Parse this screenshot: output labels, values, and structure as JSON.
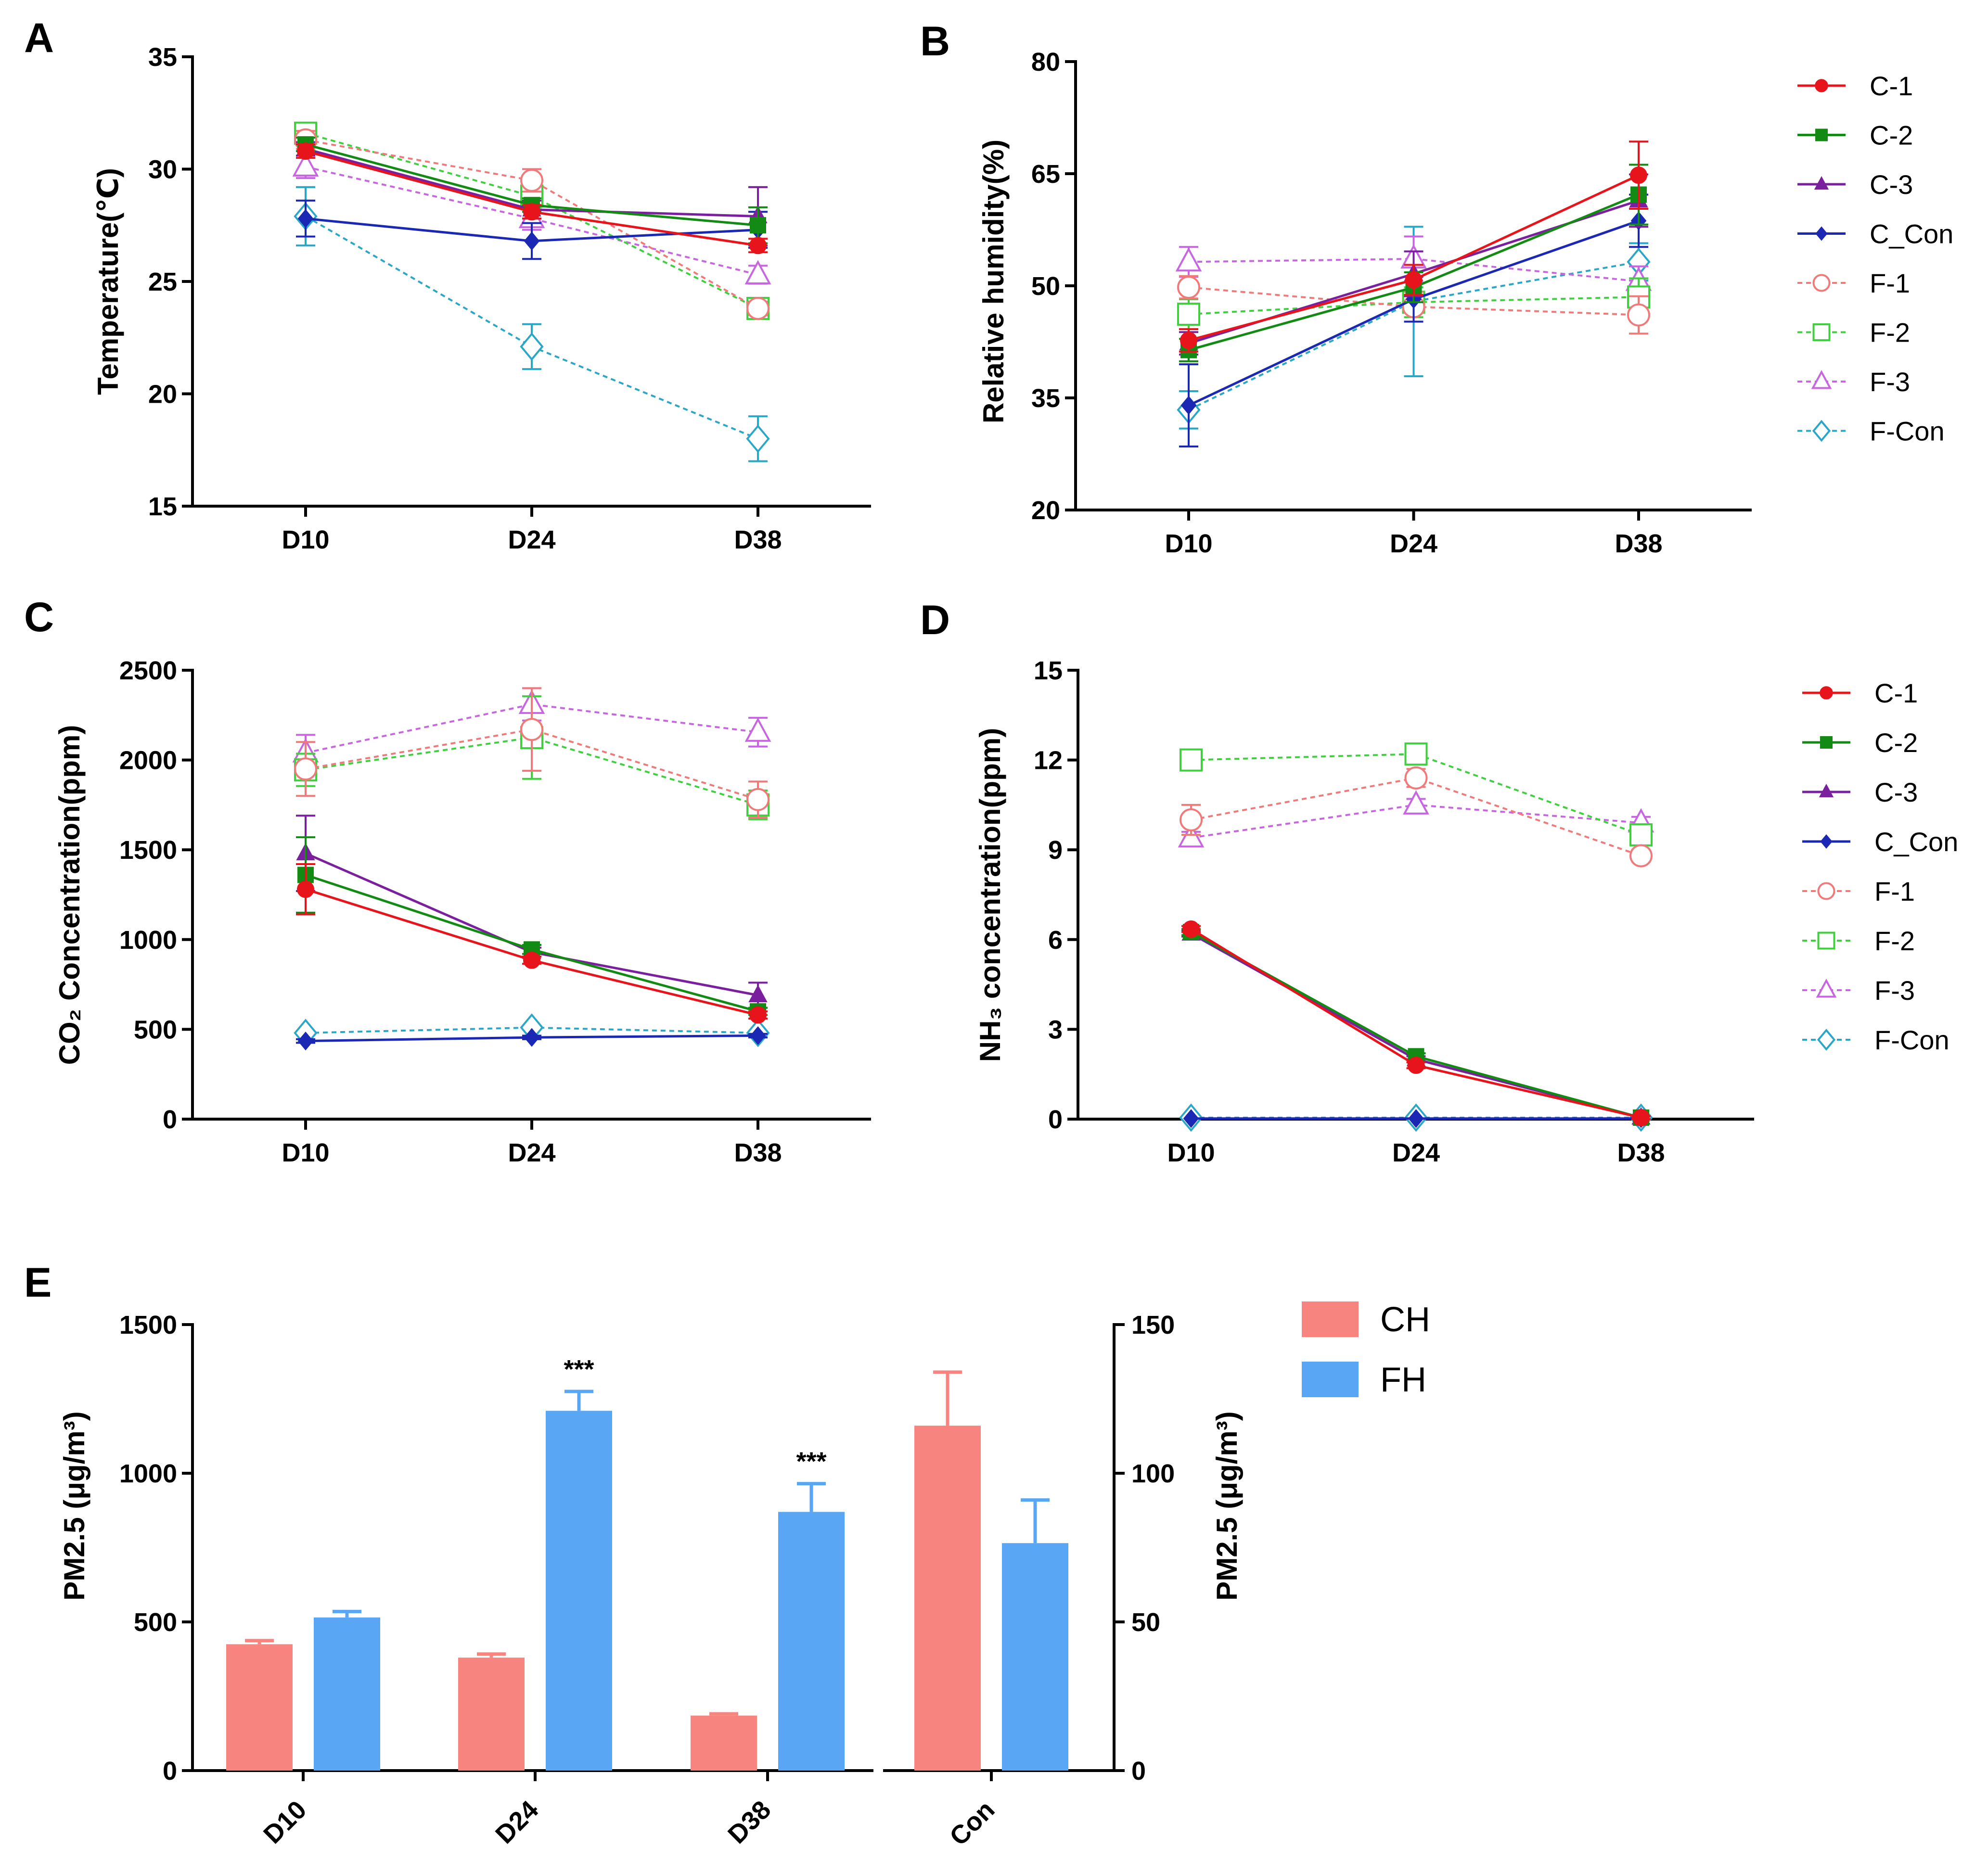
{
  "colors": {
    "C-1": "#e8141c",
    "C-2": "#128a14",
    "C-3": "#7a1f9e",
    "C_Con": "#1a28b4",
    "F-1": "#f07a7a",
    "F-2": "#3fcf3f",
    "F-3": "#c766e0",
    "F-Con": "#2aa6c6",
    "CH": "#f88480",
    "FH": "#58a6f4"
  },
  "chart_data": [
    {
      "id": "A",
      "type": "line",
      "panel_label": "A",
      "ylabel": "Temperature(℃)",
      "xlabel": "",
      "categories": [
        "D10",
        "D24",
        "D38"
      ],
      "ylim": [
        15,
        35
      ],
      "yticks": [
        "15",
        "20",
        "25",
        "30",
        "35"
      ],
      "series": [
        {
          "name": "C-1",
          "values": [
            30.8,
            28.1,
            26.6
          ],
          "err": [
            0.3,
            0.3,
            0.3
          ]
        },
        {
          "name": "C-2",
          "values": [
            31.1,
            28.4,
            27.5
          ],
          "err": [
            0.3,
            0.3,
            0.8
          ]
        },
        {
          "name": "C-3",
          "values": [
            30.9,
            28.2,
            27.9
          ],
          "err": [
            0.3,
            0.4,
            1.3
          ]
        },
        {
          "name": "C_Con",
          "values": [
            27.8,
            26.8,
            27.3
          ],
          "err": [
            0.8,
            0.8,
            0.8
          ]
        },
        {
          "name": "F-1",
          "values": [
            31.3,
            29.5,
            23.8
          ],
          "err": [
            0.4,
            0.5,
            0.3
          ]
        },
        {
          "name": "F-2",
          "values": [
            31.6,
            28.8,
            23.8
          ],
          "err": [
            0.3,
            0.5,
            0.3
          ]
        },
        {
          "name": "F-3",
          "values": [
            30.1,
            27.8,
            25.3
          ],
          "err": [
            0.5,
            0.5,
            0.4
          ]
        },
        {
          "name": "F-Con",
          "values": [
            27.9,
            22.1,
            18.0
          ],
          "err": [
            1.3,
            1.0,
            1.0
          ]
        }
      ]
    },
    {
      "id": "B",
      "type": "line",
      "panel_label": "B",
      "ylabel": "Relative humidity(%)",
      "xlabel": "",
      "categories": [
        "D10",
        "D24",
        "D38"
      ],
      "ylim": [
        20,
        80
      ],
      "yticks": [
        "20",
        "35",
        "50",
        "65",
        "80"
      ],
      "series": [
        {
          "name": "C-1",
          "values": [
            42.7,
            50.8,
            64.8
          ],
          "err": [
            1.5,
            2.0,
            4.5
          ]
        },
        {
          "name": "C-2",
          "values": [
            41.4,
            49.8,
            62.2
          ],
          "err": [
            1.5,
            2.0,
            4.0
          ]
        },
        {
          "name": "C-3",
          "values": [
            42.3,
            51.6,
            61.4
          ],
          "err": [
            1.5,
            3.0,
            3.5
          ]
        },
        {
          "name": "C_Con",
          "values": [
            34.0,
            48.2,
            58.7
          ],
          "err": [
            5.5,
            3.0,
            3.5
          ]
        },
        {
          "name": "F-1",
          "values": [
            49.8,
            47.2,
            46.1
          ],
          "err": [
            1.5,
            2.0,
            2.5
          ]
        },
        {
          "name": "F-2",
          "values": [
            46.2,
            47.8,
            48.5
          ],
          "err": [
            2.0,
            2.0,
            2.5
          ]
        },
        {
          "name": "F-3",
          "values": [
            53.2,
            53.6,
            50.6
          ],
          "err": [
            2.0,
            3.0,
            2.0
          ]
        },
        {
          "name": "F-Con",
          "values": [
            33.4,
            47.9,
            53.2
          ],
          "err": [
            2.5,
            10.0,
            2.5
          ]
        }
      ]
    },
    {
      "id": "C",
      "type": "line",
      "panel_label": "C",
      "ylabel": "CO₂ Concentration(ppm)",
      "xlabel": "",
      "categories": [
        "D10",
        "D24",
        "D38"
      ],
      "ylim": [
        0,
        2500
      ],
      "yticks": [
        "0",
        "500",
        "1000",
        "1500",
        "2000",
        "2500"
      ],
      "series": [
        {
          "name": "C-1",
          "values": [
            1280,
            885,
            580
          ],
          "err": [
            140,
            20,
            20
          ]
        },
        {
          "name": "C-2",
          "values": [
            1360,
            945,
            600
          ],
          "err": [
            210,
            25,
            20
          ]
        },
        {
          "name": "C-3",
          "values": [
            1480,
            930,
            690
          ],
          "err": [
            210,
            25,
            70
          ]
        },
        {
          "name": "C_Con",
          "values": [
            435,
            455,
            465
          ],
          "err": [
            10,
            10,
            10
          ]
        },
        {
          "name": "F-1",
          "values": [
            1950,
            2170,
            1780
          ],
          "err": [
            150,
            230,
            100
          ]
        },
        {
          "name": "F-2",
          "values": [
            1945,
            2125,
            1750
          ],
          "err": [
            90,
            230,
            80
          ]
        },
        {
          "name": "F-3",
          "values": [
            2040,
            2310,
            2155
          ],
          "err": [
            100,
            90,
            80
          ]
        },
        {
          "name": "F-Con",
          "values": [
            480,
            510,
            480
          ],
          "err": [
            10,
            10,
            10
          ]
        }
      ]
    },
    {
      "id": "D",
      "type": "line",
      "panel_label": "D",
      "ylabel": "NH₃ concentration(ppm)",
      "xlabel": "",
      "categories": [
        "D10",
        "D24",
        "D38"
      ],
      "ylim": [
        0,
        15
      ],
      "yticks": [
        "0",
        "3",
        "6",
        "9",
        "12",
        "15"
      ],
      "series": [
        {
          "name": "C-1",
          "values": [
            6.35,
            1.8,
            0.05
          ],
          "err": [
            0.1,
            0.1,
            0.05
          ]
        },
        {
          "name": "C-2",
          "values": [
            6.25,
            2.1,
            0.05
          ],
          "err": [
            0.1,
            0.1,
            0.05
          ]
        },
        {
          "name": "C-3",
          "values": [
            6.2,
            2.0,
            0.05
          ],
          "err": [
            0.1,
            0.1,
            0.05
          ]
        },
        {
          "name": "C_Con",
          "values": [
            0.02,
            0.02,
            0.02
          ],
          "err": [
            0,
            0,
            0
          ]
        },
        {
          "name": "F-1",
          "values": [
            10.0,
            11.4,
            8.8
          ],
          "err": [
            0.5,
            0.3,
            0.2
          ]
        },
        {
          "name": "F-2",
          "values": [
            12.0,
            12.2,
            9.5
          ],
          "err": [
            0.2,
            0.2,
            0.2
          ]
        },
        {
          "name": "F-3",
          "values": [
            9.4,
            10.5,
            9.9
          ],
          "err": [
            0.2,
            0.2,
            0.2
          ]
        },
        {
          "name": "F-Con",
          "values": [
            0.05,
            0.05,
            0.05
          ],
          "err": [
            0,
            0,
            0
          ]
        }
      ]
    },
    {
      "id": "E",
      "type": "bar",
      "panel_label": "E",
      "ylabel": "PM2.5 (μg/m³)",
      "ylabel_right": "PM2.5 (μg/m³)",
      "categories": [
        "D10",
        "D24",
        "D38"
      ],
      "ylim": [
        0,
        1500
      ],
      "yticks": [
        "0",
        "500",
        "1000",
        "1500"
      ],
      "series": [
        {
          "name": "CH",
          "values": [
            425,
            380,
            185
          ],
          "err": [
            12,
            12,
            6
          ]
        },
        {
          "name": "FH",
          "values": [
            515,
            1210,
            870
          ],
          "err": [
            20,
            65,
            95
          ]
        }
      ],
      "significance": [
        "",
        "***",
        "***"
      ],
      "right": {
        "categories": [
          "Con"
        ],
        "ylim": [
          0,
          150
        ],
        "yticks": [
          "0",
          "50",
          "100",
          "150"
        ],
        "series": [
          {
            "name": "CH",
            "values": [
              116
            ],
            "err": [
              18
            ]
          },
          {
            "name": "FH",
            "values": [
              76.5
            ],
            "err": [
              14.5
            ]
          }
        ]
      }
    }
  ],
  "legend_lines": [
    "C-1",
    "C-2",
    "C-3",
    "C_Con",
    "F-1",
    "F-2",
    "F-3",
    "F-Con"
  ],
  "legend_bars": [
    "CH",
    "FH"
  ]
}
